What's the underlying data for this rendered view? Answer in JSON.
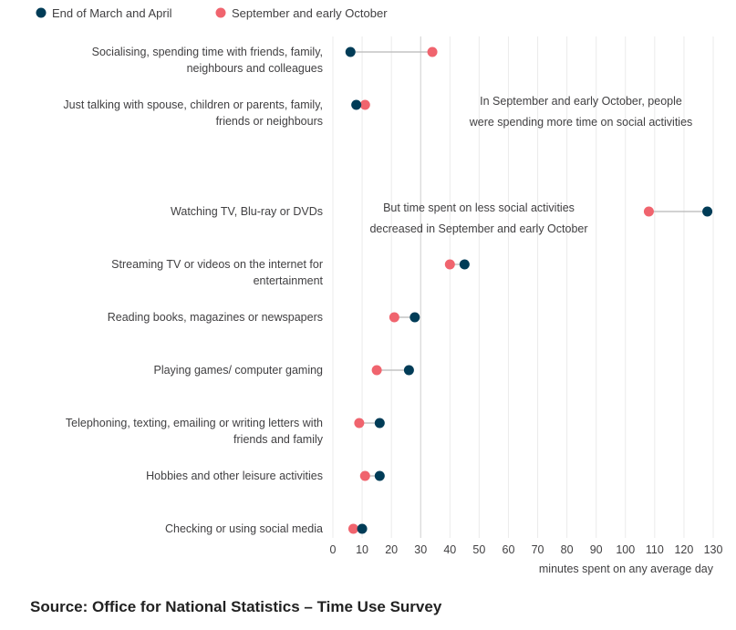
{
  "chart_data": {
    "type": "dumbbell",
    "legend": {
      "placement": "top-left",
      "entries": [
        {
          "name": "End of March and April",
          "color": "#003c57"
        },
        {
          "name": "September and early October",
          "color": "#f0646e"
        }
      ]
    },
    "xlabel": "minutes spent on any average day",
    "xlim": [
      0,
      130
    ],
    "xticks": [
      "0",
      "10",
      "20",
      "30",
      "40",
      "50",
      "60",
      "70",
      "80",
      "90",
      "100",
      "110",
      "120",
      "130"
    ],
    "grid": true,
    "categories": [
      {
        "label": [
          "Socialising, spending time with friends, family,",
          "neighbours and colleagues"
        ],
        "march_april": 6,
        "sept_oct": 34
      },
      {
        "label": [
          "Just talking with spouse, children or parents, family,",
          "friends or neighbours"
        ],
        "march_april": 8,
        "sept_oct": 11
      },
      {
        "label": [
          "Watching TV, Blu-ray or DVDs"
        ],
        "march_april": 128,
        "sept_oct": 108
      },
      {
        "label": [
          "Streaming TV or videos on the internet for",
          "entertainment"
        ],
        "march_april": 45,
        "sept_oct": 40
      },
      {
        "label": [
          "Reading books, magazines or newspapers"
        ],
        "march_april": 28,
        "sept_oct": 21
      },
      {
        "label": [
          "Playing games/ computer gaming"
        ],
        "march_april": 26,
        "sept_oct": 15
      },
      {
        "label": [
          "Telephoning, texting, emailing or writing letters with",
          "friends and family"
        ],
        "march_april": 16,
        "sept_oct": 9
      },
      {
        "label": [
          "Hobbies and other leisure activities"
        ],
        "march_april": 16,
        "sept_oct": 11
      },
      {
        "label": [
          "Checking or using social media"
        ],
        "march_april": 10,
        "sept_oct": 7
      }
    ],
    "annotations": [
      {
        "lines": [
          "In September and early October, people",
          "were spending more time on social activities"
        ]
      },
      {
        "lines": [
          "But time spent on less social activities",
          "decreased in September and early October"
        ]
      }
    ]
  },
  "source": "Source: Office for National Statistics – Time Use Survey"
}
